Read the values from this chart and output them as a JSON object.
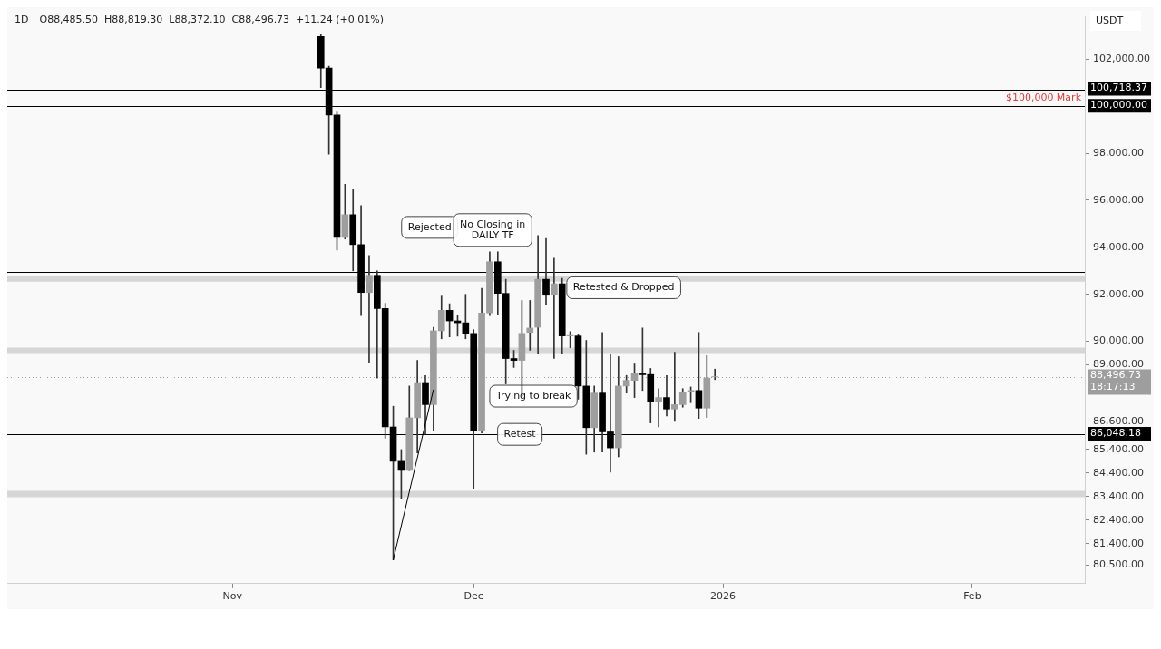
{
  "chart_data": {
    "type": "candlestick",
    "title": "1D",
    "subtitle": "O88,485.50  H88,819.30  L88,372.10  C88,496.73  +11.24 (+0.01%)",
    "ylabel": "USDT",
    "x": [
      "2025-11-12",
      "2025-11-13",
      "2025-11-14",
      "2025-11-15",
      "2025-11-16",
      "2025-11-17",
      "2025-11-18",
      "2025-11-19",
      "2025-11-20",
      "2025-11-21",
      "2025-11-22",
      "2025-11-23",
      "2025-11-24",
      "2025-11-25",
      "2025-11-26",
      "2025-11-27",
      "2025-11-28",
      "2025-11-29",
      "2025-11-30",
      "2025-12-01",
      "2025-12-02",
      "2025-12-03",
      "2025-12-04",
      "2025-12-05",
      "2025-12-06",
      "2025-12-07",
      "2025-12-08",
      "2025-12-09",
      "2025-12-10",
      "2025-12-11",
      "2025-12-12",
      "2025-12-13",
      "2025-12-14",
      "2025-12-15",
      "2025-12-16",
      "2025-12-17",
      "2025-12-18",
      "2025-12-19",
      "2025-12-20",
      "2025-12-21",
      "2025-12-22",
      "2025-12-23",
      "2025-12-24",
      "2025-12-25",
      "2025-12-26",
      "2025-12-27",
      "2025-12-28",
      "2025-12-29",
      "2025-12-30",
      "2025-12-31"
    ],
    "ohlc": [
      [
        102960,
        103050,
        100790,
        101620
      ],
      [
        101620,
        101700,
        97960,
        99625
      ],
      [
        99625,
        99750,
        93885,
        94420
      ],
      [
        94420,
        96680,
        94350,
        95385
      ],
      [
        95385,
        96470,
        93000,
        94115
      ],
      [
        94115,
        95770,
        91095,
        92077
      ],
      [
        92077,
        93655,
        89077,
        92810
      ],
      [
        92810,
        93000,
        88440,
        91395
      ],
      [
        91395,
        91620,
        85880,
        86360
      ],
      [
        86360,
        87240,
        80710,
        84900
      ],
      [
        84900,
        85400,
        83300,
        84510
      ],
      [
        84510,
        88100,
        84500,
        86750
      ],
      [
        86750,
        89190,
        85260,
        88250
      ],
      [
        88250,
        88550,
        86050,
        87310
      ],
      [
        87310,
        90600,
        86200,
        90450
      ],
      [
        90450,
        91925,
        90110,
        91320
      ],
      [
        91320,
        91600,
        90190,
        90870
      ],
      [
        90870,
        91130,
        90220,
        90790
      ],
      [
        90790,
        92000,
        90110,
        90340
      ],
      [
        90340,
        90500,
        83720,
        86220
      ],
      [
        86220,
        92260,
        86100,
        91210
      ],
      [
        91210,
        93810,
        91100,
        93385
      ],
      [
        93385,
        93810,
        91130,
        92040
      ],
      [
        92040,
        92640,
        88190,
        89270
      ],
      [
        89270,
        89620,
        88890,
        89190
      ],
      [
        89190,
        91740,
        87650,
        90340
      ],
      [
        90380,
        91740,
        89620,
        90565
      ],
      [
        90600,
        94500,
        89460,
        92640
      ],
      [
        92640,
        94380,
        91550,
        91960
      ],
      [
        92000,
        93540,
        89270,
        92450
      ],
      [
        92450,
        92680,
        89460,
        90230
      ],
      [
        90230,
        90415,
        89730,
        90250
      ],
      [
        90230,
        90300,
        87540,
        88100
      ],
      [
        88100,
        90040,
        85200,
        86330
      ],
      [
        86330,
        88100,
        85290,
        87800
      ],
      [
        87800,
        90380,
        85290,
        86150
      ],
      [
        86150,
        89460,
        84440,
        85470
      ],
      [
        85470,
        89350,
        85090,
        88100
      ],
      [
        88100,
        88550,
        87800,
        88340
      ],
      [
        88340,
        89040,
        87610,
        88630
      ],
      [
        88620,
        90570,
        87910,
        88580
      ],
      [
        88590,
        88850,
        86530,
        87420
      ],
      [
        87420,
        87990,
        86360,
        87610
      ],
      [
        87610,
        88550,
        86830,
        87120
      ],
      [
        87120,
        89540,
        86600,
        87310
      ],
      [
        87310,
        87990,
        87200,
        87840
      ],
      [
        87840,
        88060,
        87390,
        87910
      ],
      [
        87910,
        90380,
        86720,
        87160
      ],
      [
        87160,
        89390,
        86760,
        88440
      ],
      [
        88485.5,
        88819.3,
        88372.1,
        88496.73
      ]
    ],
    "colors": [
      "#000000",
      "#000000",
      "#000000",
      "#9e9e9e",
      "#000000",
      "#000000",
      "#9e9e9e",
      "#000000",
      "#000000",
      "#000000",
      "#000000",
      "#9e9e9e",
      "#9e9e9e",
      "#000000",
      "#9e9e9e",
      "#9e9e9e",
      "#000000",
      "#000000",
      "#000000",
      "#000000",
      "#9e9e9e",
      "#9e9e9e",
      "#000000",
      "#000000",
      "#000000",
      "#9e9e9e",
      "#9e9e9e",
      "#9e9e9e",
      "#000000",
      "#9e9e9e",
      "#000000",
      "#9e9e9e",
      "#000000",
      "#000000",
      "#9e9e9e",
      "#000000",
      "#000000",
      "#9e9e9e",
      "#9e9e9e",
      "#9e9e9e",
      "#000000",
      "#000000",
      "#9e9e9e",
      "#000000",
      "#9e9e9e",
      "#9e9e9e",
      "#9e9e9e",
      "#000000",
      "#9e9e9e",
      "#9e9e9e"
    ],
    "series": [
      {
        "type": "line",
        "color": "#000000",
        "x": [
          "2025-11-21",
          "2025-11-26"
        ],
        "values": [
          80710,
          87950
        ]
      }
    ],
    "xlim": [
      "2025-10-04",
      "2026-02-15"
    ],
    "xticks": [
      {
        "value": "2025-11-01",
        "label": "Nov"
      },
      {
        "value": "2025-12-01",
        "label": "Dec"
      },
      {
        "value": "2026-01-01",
        "label": "2026"
      },
      {
        "value": "2026-02-01",
        "label": "Feb"
      }
    ],
    "ylim": [
      79700,
      103800
    ],
    "yticks": [
      {
        "value": 102000,
        "label": "102,000.00"
      },
      {
        "value": 98000,
        "label": "98,000.00"
      },
      {
        "value": 96000,
        "label": "96,000.00"
      },
      {
        "value": 94000,
        "label": "94,000.00"
      },
      {
        "value": 92000,
        "label": "92,000.00"
      },
      {
        "value": 90000,
        "label": "90,000.00"
      },
      {
        "value": 89000,
        "label": "89,000.00"
      },
      {
        "value": 86600,
        "label": "86,600.00"
      },
      {
        "value": 85400,
        "label": "85,400.00"
      },
      {
        "value": 84400,
        "label": "84,400.00"
      },
      {
        "value": 83400,
        "label": "83,400.00"
      },
      {
        "value": 82400,
        "label": "82,400.00"
      },
      {
        "value": 81400,
        "label": "81,400.00"
      },
      {
        "value": 80500,
        "label": "80,500.00"
      }
    ],
    "ref_lines": [
      {
        "axis": "y",
        "value": 100718.37,
        "label": "100,718.37",
        "color": "#000000"
      },
      {
        "axis": "y",
        "value": 100000,
        "label": "100,000.00",
        "color": "#000000"
      },
      {
        "axis": "y",
        "value": 92960,
        "color": "#000000"
      },
      {
        "axis": "y",
        "value": 88496.73,
        "label": "88,496.73\n18:17:13",
        "color": "#9e9e9e",
        "line_style": "dotted"
      },
      {
        "axis": "y",
        "value": 86048.18,
        "label": "86,048.18",
        "color": "#000000"
      }
    ],
    "bands": [
      {
        "axis": "y",
        "from": 92540,
        "to": 92770,
        "color": "#d6d6d6"
      },
      {
        "axis": "y",
        "from": 89500,
        "to": 89730,
        "color": "#d6d6d6"
      },
      {
        "axis": "y",
        "from": 83370,
        "to": 83640,
        "color": "#d6d6d6"
      }
    ],
    "annotations": [
      {
        "text": "$100,000 Mark",
        "y": 100000
      },
      "Rejected",
      "No Closing in\nDAILY TF",
      "Trying to break",
      "Retested & Dropped",
      "Retest"
    ],
    "grid": false,
    "legend": false
  }
}
